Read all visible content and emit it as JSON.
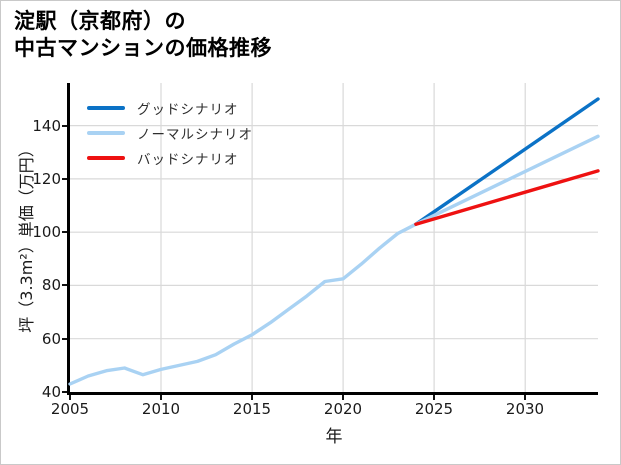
{
  "title": {
    "line1": "淀駅（京都府）の",
    "line2": "中古マンションの価格推移"
  },
  "colors": {
    "good_scenario": "#0b72c6",
    "normal_scenario": "#a9d2f3",
    "bad_scenario": "#ee1111",
    "gridline": "#d9d9d9",
    "axis": "#000000"
  },
  "legend": [
    {
      "label": "グッドシナリオ",
      "color_key": "good_scenario"
    },
    {
      "label": "ノーマルシナリオ",
      "color_key": "normal_scenario"
    },
    {
      "label": "バッドシナリオ",
      "color_key": "bad_scenario"
    }
  ],
  "chart_data": {
    "type": "line",
    "title": "淀駅（京都府）の中古マンションの価格推移",
    "xlabel": "年",
    "ylabel": "坪（3.3m²）単価（万円）",
    "xlim": [
      2005,
      2034
    ],
    "ylim": [
      40,
      156
    ],
    "x_ticks": [
      2005,
      2010,
      2015,
      2020,
      2025,
      2030
    ],
    "y_ticks": [
      40,
      60,
      80,
      100,
      120,
      140
    ],
    "grid": true,
    "legend_position": "upper-left",
    "series": [
      {
        "id": "price-history",
        "label": "",
        "color_key": "normal_scenario",
        "x": [
          2005,
          2006,
          2007,
          2008,
          2009,
          2010,
          2011,
          2012,
          2013,
          2014,
          2015,
          2016,
          2017,
          2018,
          2019,
          2020,
          2021,
          2022,
          2023,
          2024
        ],
        "y": [
          43,
          46,
          48,
          49,
          46.5,
          48.5,
          50,
          51.5,
          54,
          58,
          61.5,
          66,
          71,
          76,
          81.5,
          82.5,
          88,
          94,
          99.5,
          103
        ]
      },
      {
        "id": "good-scenario",
        "label": "グッドシナリオ",
        "color_key": "good_scenario",
        "x": [
          2024,
          2029,
          2034
        ],
        "y": [
          103,
          126.5,
          150
        ]
      },
      {
        "id": "normal-scenario",
        "label": "ノーマルシナリオ",
        "color_key": "normal_scenario",
        "x": [
          2024,
          2029,
          2034
        ],
        "y": [
          103,
          119.5,
          136
        ]
      },
      {
        "id": "bad-scenario",
        "label": "バッドシナリオ",
        "color_key": "bad_scenario",
        "x": [
          2024,
          2029,
          2034
        ],
        "y": [
          103,
          113,
          123
        ]
      }
    ]
  }
}
